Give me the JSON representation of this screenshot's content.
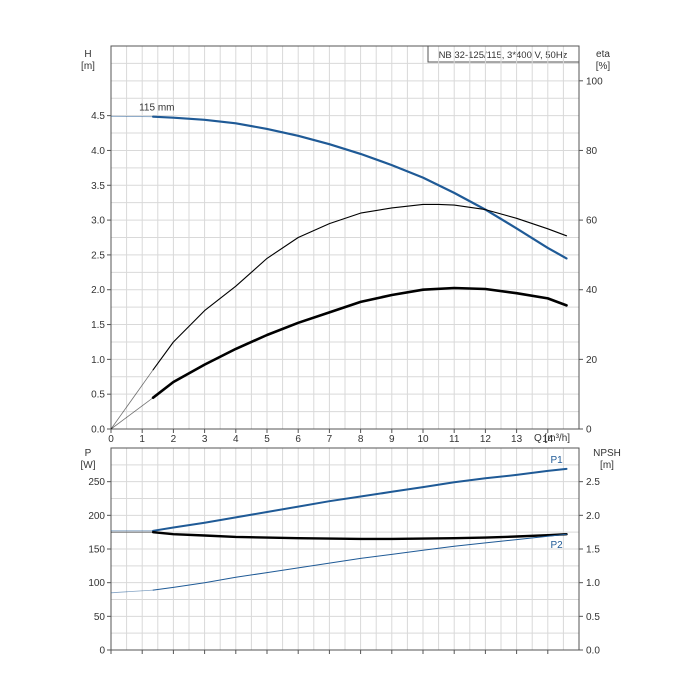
{
  "chart_data": [
    {
      "type": "line",
      "title": "NB 32-125/115, 3*400 V, 50Hz",
      "xlabel": "Q [m³/h]",
      "xlim": [
        0,
        15
      ],
      "x_ticks": [
        0,
        1,
        2,
        3,
        4,
        5,
        6,
        7,
        8,
        9,
        10,
        11,
        12,
        13,
        14
      ],
      "ylabel_left": [
        "H",
        "[m]"
      ],
      "ylim_left": [
        0,
        5.5
      ],
      "y_ticks_left": [
        "0.0",
        "0.5",
        "1.0",
        "1.5",
        "2.0",
        "2.5",
        "3.0",
        "3.5",
        "4.0",
        "4.5"
      ],
      "ylabel_right": [
        "eta",
        "[%]"
      ],
      "ylim_right": [
        0,
        110
      ],
      "y_ticks_right": [
        "0",
        "20",
        "40",
        "60",
        "80",
        "100"
      ],
      "grid": true,
      "series": [
        {
          "name": "115 mm",
          "axis": "left",
          "color": "#1f5a96",
          "extrapolated_until": 1.35,
          "x": [
            0,
            1.35,
            2,
            3,
            4,
            5,
            6,
            7,
            8,
            9,
            10,
            11,
            12,
            13,
            14,
            14.6
          ],
          "y": [
            4.49,
            4.485,
            4.47,
            4.44,
            4.39,
            4.31,
            4.21,
            4.09,
            3.95,
            3.79,
            3.61,
            3.39,
            3.15,
            2.88,
            2.6,
            2.45
          ]
        },
        {
          "axis": "right",
          "color": "#000000",
          "extrapolated_until": 1.35,
          "x": [
            0,
            1.35,
            2,
            3,
            4,
            5,
            6,
            7,
            8,
            9,
            10,
            10.5,
            11,
            12,
            13,
            14,
            14.6
          ],
          "y": [
            0,
            17,
            25,
            34,
            41,
            49,
            55,
            59,
            62,
            63.5,
            64.5,
            64.5,
            64.3,
            63,
            60.5,
            57.5,
            55.5
          ]
        },
        {
          "axis": "right",
          "color": "#000000",
          "extrapolated_until": 1.35,
          "x": [
            0,
            1.35,
            2,
            3,
            4,
            5,
            6,
            7,
            8,
            9,
            10,
            11,
            12,
            13,
            14,
            14.6
          ],
          "y": [
            0,
            9,
            13.5,
            18.5,
            23,
            27,
            30.5,
            33.5,
            36.5,
            38.5,
            40,
            40.5,
            40.2,
            39,
            37.5,
            35.5
          ]
        }
      ]
    },
    {
      "type": "line",
      "xlim": [
        0,
        15
      ],
      "ylabel_left": [
        "P",
        "[W]"
      ],
      "ylim_left": [
        0,
        300
      ],
      "y_ticks_left": [
        "0",
        "50",
        "100",
        "150",
        "200",
        "250"
      ],
      "ylabel_right": [
        "NPSH",
        "[m]"
      ],
      "ylim_right": [
        0,
        3.0
      ],
      "y_ticks_right": [
        "0.0",
        "0.5",
        "1.0",
        "1.5",
        "2.0",
        "2.5"
      ],
      "grid": true,
      "series": [
        {
          "name": "P1",
          "axis": "left",
          "color": "#1f5a96",
          "extrapolated_until": 1.35,
          "x": [
            0,
            1.35,
            2,
            3,
            4,
            5,
            6,
            7,
            8,
            9,
            10,
            11,
            12,
            13,
            14,
            14.6
          ],
          "y": [
            177,
            177,
            182,
            189,
            197,
            205,
            213,
            221,
            228,
            235,
            242,
            249,
            255,
            260,
            266,
            269
          ]
        },
        {
          "name": "P2",
          "axis": "left",
          "color": "#000000",
          "extrapolated_until": 1.35,
          "x": [
            0,
            1.35,
            2,
            3,
            4,
            5,
            6,
            7,
            8,
            9,
            10,
            11,
            12,
            13,
            14,
            14.6
          ],
          "y": [
            175,
            175,
            172,
            170,
            168,
            167,
            166,
            165.5,
            165,
            165,
            165.5,
            166,
            167,
            168.5,
            170.5,
            172
          ]
        },
        {
          "axis": "right",
          "color": "#1f5a96",
          "extrapolated_until": 1.35,
          "x": [
            0,
            1.35,
            2,
            3,
            4,
            5,
            6,
            7,
            8,
            9,
            10,
            11,
            12,
            13,
            14,
            14.6
          ],
          "y": [
            0.85,
            0.89,
            0.93,
            1.0,
            1.08,
            1.15,
            1.22,
            1.29,
            1.36,
            1.42,
            1.48,
            1.54,
            1.59,
            1.64,
            1.69,
            1.72
          ]
        }
      ]
    }
  ]
}
